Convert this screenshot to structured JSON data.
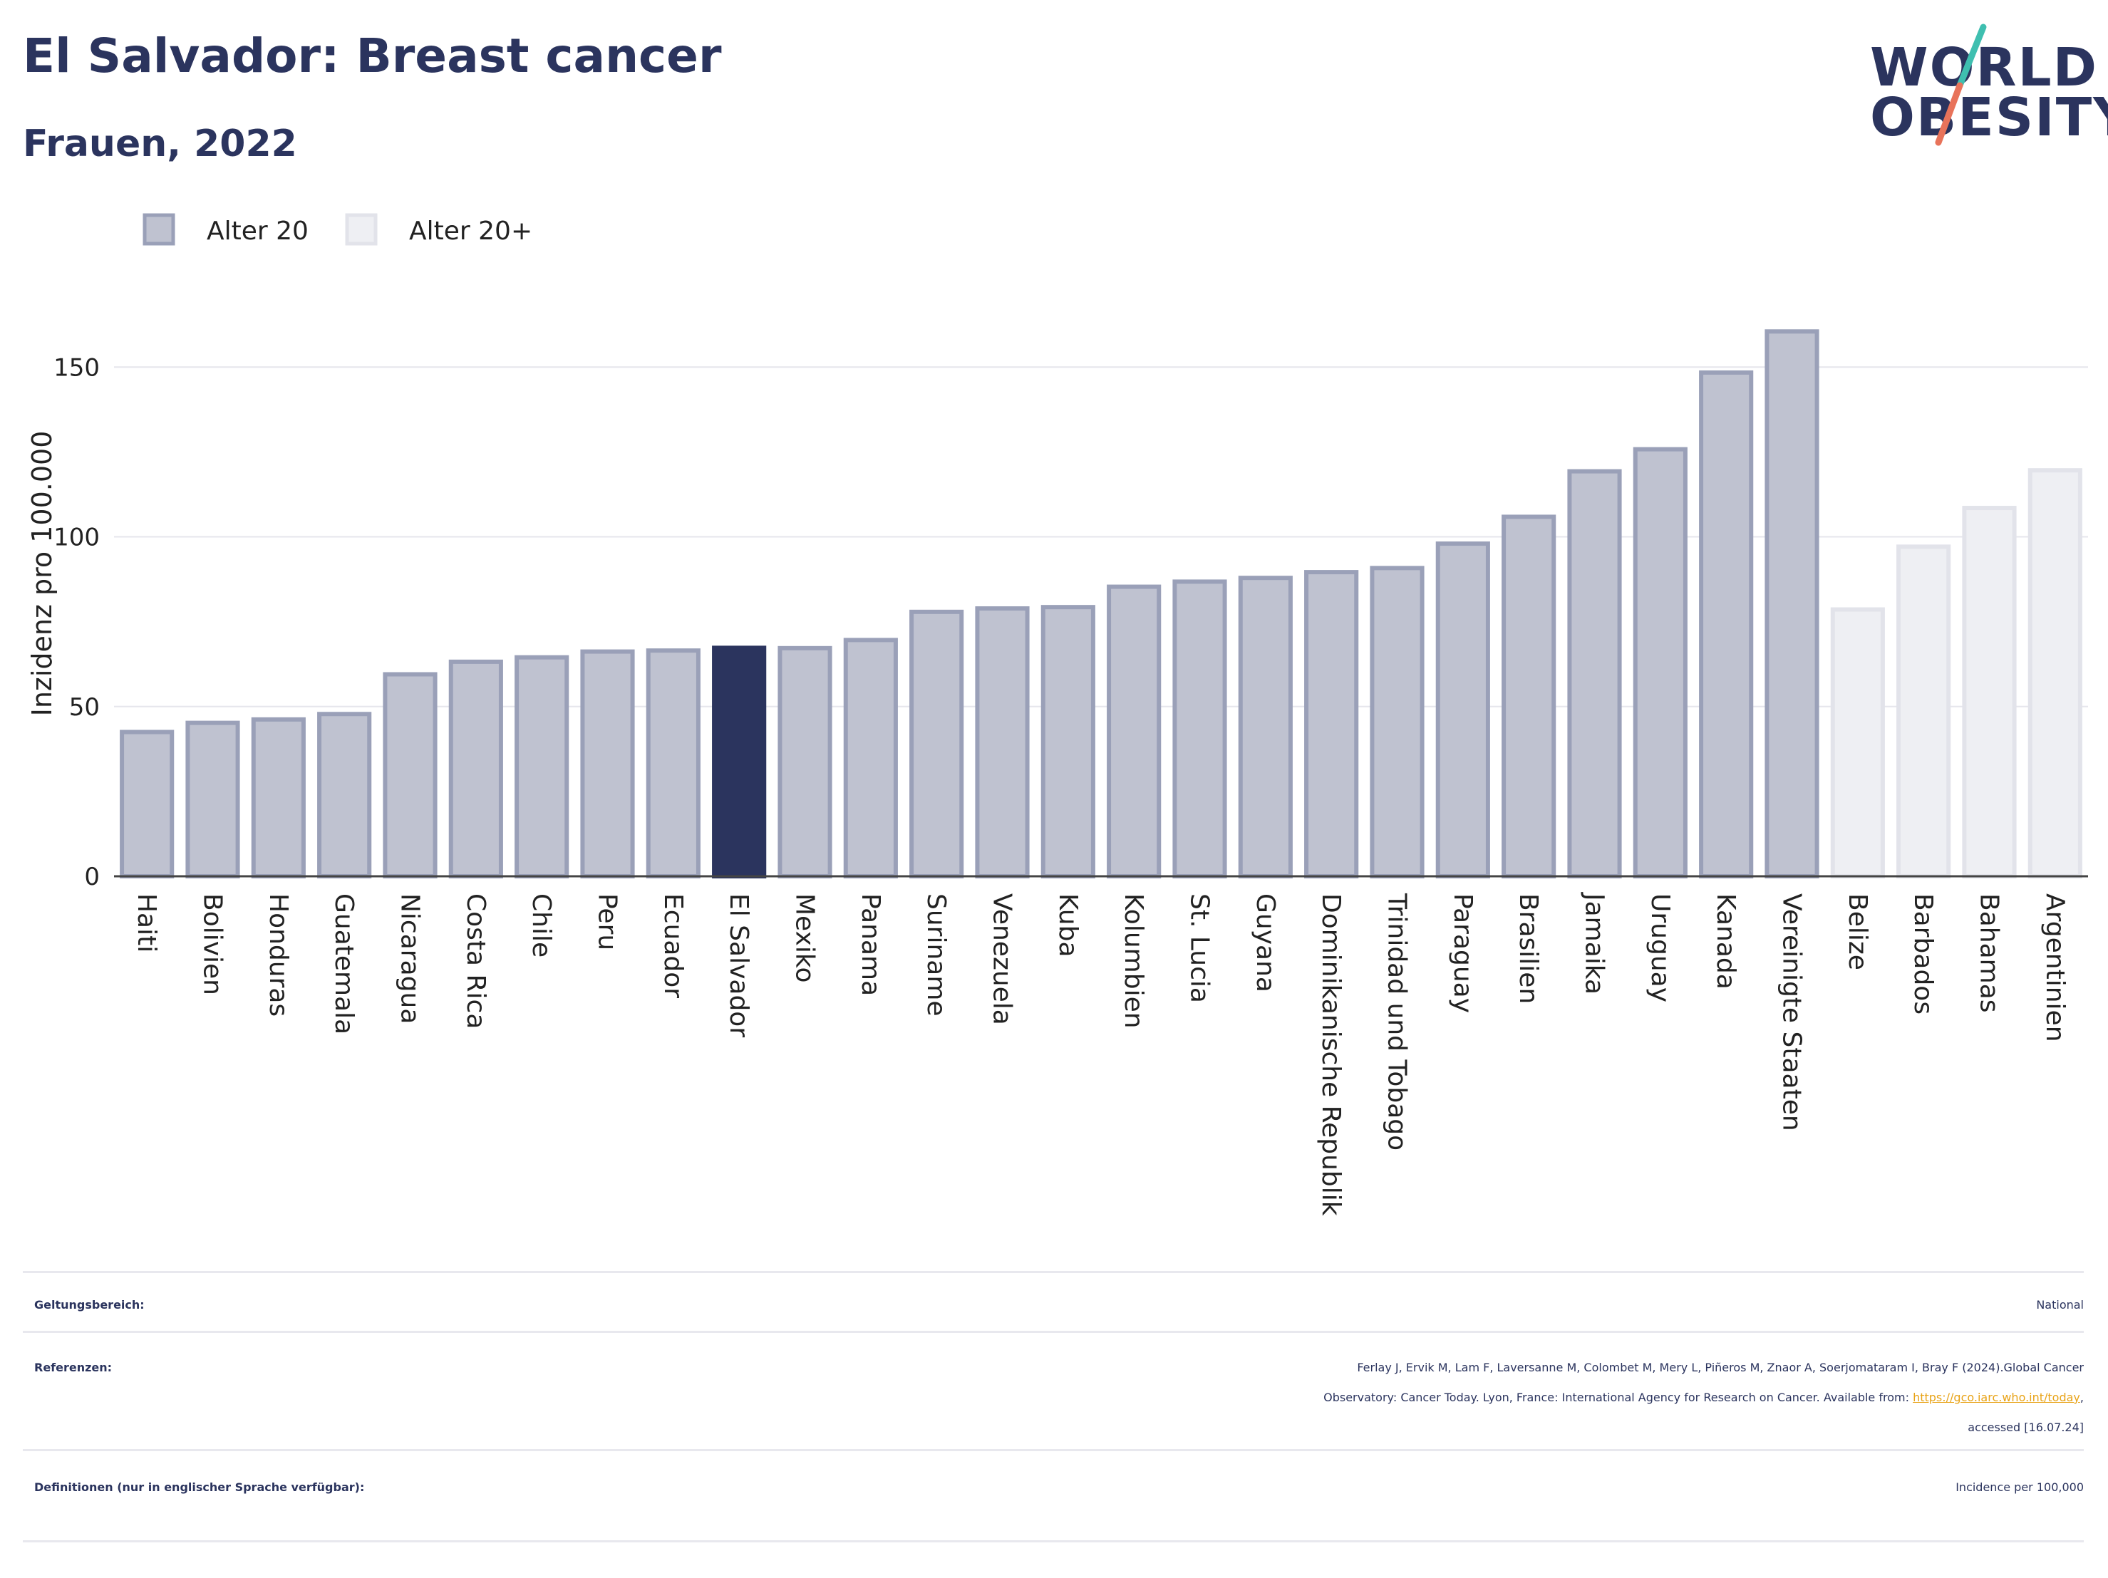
{
  "header": {
    "title": "El Salvador: Breast cancer",
    "subtitle": "Frauen, 2022"
  },
  "logo": {
    "line1": "WORLD",
    "line2": "OBESITY",
    "slash_colors": [
      "#3fbfb0",
      "#e8735a"
    ]
  },
  "chart_data": {
    "type": "bar",
    "ylabel": "Inzidenz pro 100.000",
    "ylim": [
      0,
      170
    ],
    "yticks": [
      0,
      50,
      100,
      150
    ],
    "grid": true,
    "legend_placement": "top-left",
    "legend": [
      {
        "label": "Alter 20",
        "color": "#bfc2d0",
        "stroke": "#9aa0b8"
      },
      {
        "label": "Alter 20+",
        "color": "#eeeff3",
        "stroke": "#e2e3ea"
      }
    ],
    "highlight_color": "#2b345e",
    "categories": [
      "Haiti",
      "Bolivien",
      "Honduras",
      "Guatemala",
      "Nicaragua",
      "Costa Rica",
      "Chile",
      "Peru",
      "Ecuador",
      "El Salvador",
      "Mexiko",
      "Panama",
      "Suriname",
      "Venezuela",
      "Kuba",
      "Kolumbien",
      "St. Lucia",
      "Guyana",
      "Dominikanische Republik",
      "Trinidad und Tobago",
      "Paraguay",
      "Brasilien",
      "Jamaika",
      "Uruguay",
      "Kanada",
      "Vereinigte Staaten",
      "Belize",
      "Barbados",
      "Bahamas",
      "Argentinien"
    ],
    "values": [
      42.5,
      45.2,
      46.2,
      47.8,
      59.5,
      63.2,
      64.5,
      66.2,
      66.5,
      67.3,
      67.2,
      69.6,
      77.9,
      78.9,
      79.3,
      85.3,
      86.8,
      87.9,
      89.6,
      90.8,
      98.0,
      105.9,
      119.3,
      125.8,
      148.4,
      160.5,
      78.6,
      97.1,
      108.5,
      119.6
    ],
    "groups": [
      "Alter 20",
      "Alter 20",
      "Alter 20",
      "Alter 20",
      "Alter 20",
      "Alter 20",
      "Alter 20",
      "Alter 20",
      "Alter 20",
      "Alter 20",
      "Alter 20",
      "Alter 20",
      "Alter 20",
      "Alter 20",
      "Alter 20",
      "Alter 20",
      "Alter 20",
      "Alter 20",
      "Alter 20",
      "Alter 20",
      "Alter 20",
      "Alter 20",
      "Alter 20",
      "Alter 20",
      "Alter 20",
      "Alter 20",
      "Alter 20+",
      "Alter 20+",
      "Alter 20+",
      "Alter 20+"
    ],
    "highlight": "El Salvador"
  },
  "info": {
    "scope_label": "Geltungsbereich:",
    "scope_value": "National",
    "ref_label": "Referenzen:",
    "ref_line1": "Ferlay J, Ervik M, Lam F, Laversanne M, Colombet M, Mery L, Piñeros M, Znaor A, Soerjomataram I, Bray F (2024).Global Cancer",
    "ref_line2_text": "Observatory: Cancer Today. Lyon, France: International Agency for Research on Cancer. Available from: ",
    "ref_link": "https://gco.iarc.who.int/today",
    "ref_line2_end": ",",
    "ref_line3": "accessed [16.07.24]",
    "def_label": "Definitionen (nur in englischer Sprache verfügbar):",
    "def_value": "Incidence per 100,000"
  }
}
